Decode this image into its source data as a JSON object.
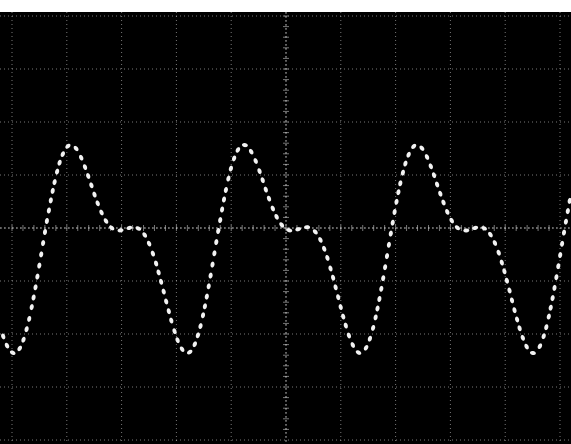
{
  "caption": {
    "fragment_text": "",
    "note_visible": false
  },
  "photo": {
    "subject": "oscilloscope-screen-photo",
    "background_color": "#000000",
    "trace_color": "#f2f2f2",
    "graticule_color": "#d8d8d8",
    "grid": {
      "major_vertical_divisions": 10,
      "major_horizontal_divisions": 8,
      "minor_ticks_per_division": 5,
      "center_axes": true
    },
    "waveform": {
      "style": "dotted",
      "shape": "sum of sinusoids (alternating tall and short peaks)",
      "fundamental_cycles_visible": 3.3,
      "harmonic_ratio": 2
    }
  }
}
